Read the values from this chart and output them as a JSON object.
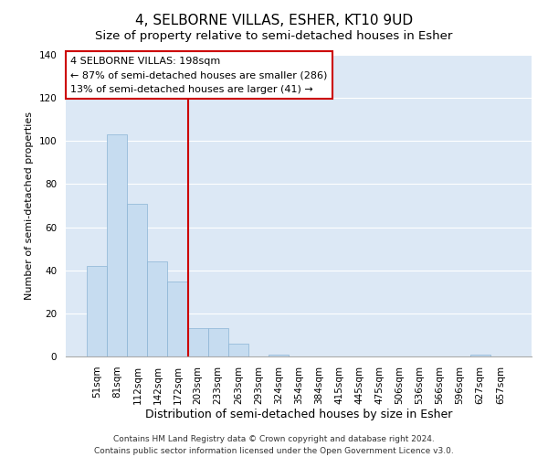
{
  "title": "4, SELBORNE VILLAS, ESHER, KT10 9UD",
  "subtitle": "Size of property relative to semi-detached houses in Esher",
  "xlabel": "Distribution of semi-detached houses by size in Esher",
  "ylabel": "Number of semi-detached properties",
  "bar_labels": [
    "51sqm",
    "81sqm",
    "112sqm",
    "142sqm",
    "172sqm",
    "203sqm",
    "233sqm",
    "263sqm",
    "293sqm",
    "324sqm",
    "354sqm",
    "384sqm",
    "415sqm",
    "445sqm",
    "475sqm",
    "506sqm",
    "536sqm",
    "566sqm",
    "596sqm",
    "627sqm",
    "657sqm"
  ],
  "bar_values": [
    42,
    103,
    71,
    44,
    35,
    13,
    13,
    6,
    0,
    1,
    0,
    0,
    0,
    0,
    0,
    0,
    0,
    0,
    0,
    1,
    0
  ],
  "bar_color": "#c6dcf0",
  "bar_edge_color": "#8ab4d4",
  "vline_color": "#cc0000",
  "vline_bar_index": 5,
  "ylim": [
    0,
    140
  ],
  "yticks": [
    0,
    20,
    40,
    60,
    80,
    100,
    120,
    140
  ],
  "annotation_title": "4 SELBORNE VILLAS: 198sqm",
  "annotation_line1": "← 87% of semi-detached houses are smaller (286)",
  "annotation_line2": "13% of semi-detached houses are larger (41) →",
  "annotation_box_color": "#ffffff",
  "annotation_box_edge": "#cc0000",
  "footer_line1": "Contains HM Land Registry data © Crown copyright and database right 2024.",
  "footer_line2": "Contains public sector information licensed under the Open Government Licence v3.0.",
  "background_color": "#ffffff",
  "plot_background": "#dce8f5",
  "title_fontsize": 11,
  "subtitle_fontsize": 9.5,
  "xlabel_fontsize": 9,
  "ylabel_fontsize": 8,
  "tick_fontsize": 7.5,
  "annotation_fontsize": 8,
  "footer_fontsize": 6.5
}
